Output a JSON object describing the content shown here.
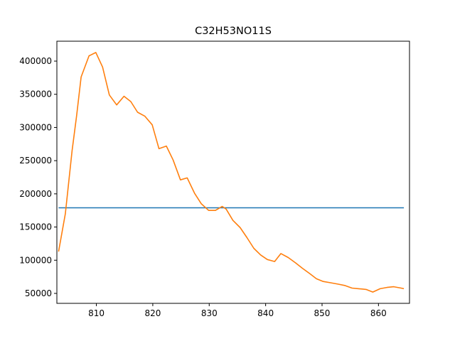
{
  "chart_data": {
    "type": "line",
    "title": "C32H53NO11S",
    "xlabel": "",
    "ylabel": "",
    "xlim": [
      803.0,
      865.5
    ],
    "ylim": [
      35000,
      430000
    ],
    "x_ticks": [
      810,
      820,
      830,
      840,
      850,
      860
    ],
    "y_ticks": [
      50000,
      100000,
      150000,
      200000,
      250000,
      300000,
      350000,
      400000
    ],
    "grid": false,
    "legend": "none",
    "series": [
      {
        "color": "#1f77b4",
        "x": [
          803.3,
          864.5
        ],
        "y": [
          179000,
          179000
        ]
      },
      {
        "color": "#ff7f0e",
        "x": [
          803.3,
          804.5,
          805.7,
          806.5,
          807.3,
          808.7,
          809.9,
          811.1,
          812.3,
          813.6,
          814.9,
          816.1,
          817.3,
          818.6,
          819.9,
          821.1,
          822.4,
          823.6,
          824.9,
          826.1,
          827.4,
          828.6,
          829.9,
          831.1,
          832.3,
          833.0,
          834.2,
          835.5,
          836.7,
          837.9,
          839.1,
          840.3,
          841.6,
          842.7,
          844.0,
          845.3,
          846.5,
          847.8,
          849.0,
          850.2,
          851.5,
          852.8,
          854.0,
          855.3,
          856.5,
          857.8,
          859.0,
          860.3,
          861.5,
          862.7,
          864.0,
          864.5
        ],
        "y": [
          113000,
          170000,
          265000,
          318000,
          376000,
          408000,
          413000,
          391000,
          349000,
          334000,
          347000,
          339000,
          323000,
          317000,
          304000,
          268000,
          272000,
          251000,
          221000,
          224000,
          201000,
          185000,
          175000,
          175000,
          181000,
          177000,
          160000,
          149000,
          134000,
          118000,
          108000,
          101000,
          98000,
          110000,
          104000,
          96000,
          88000,
          80000,
          72000,
          68000,
          66000,
          64000,
          62000,
          58000,
          57000,
          56000,
          52000,
          57000,
          59000,
          60000,
          58000,
          57000
        ]
      }
    ]
  }
}
